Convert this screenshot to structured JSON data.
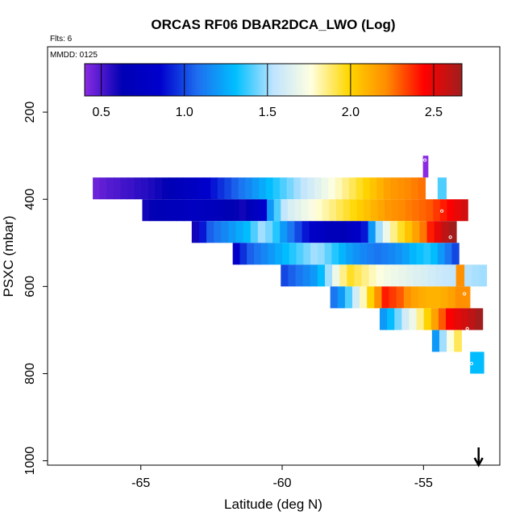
{
  "chart_data": {
    "type": "heatmap",
    "title": "ORCAS RF06 DBAR2DCA_LWO (Log)",
    "flights_label": "Flts: 6",
    "date_label": "MMDD: 0125",
    "xlabel": "Latitude (deg N)",
    "ylabel": "PSXC (mbar)",
    "xlim": [
      -68.3,
      -52.3
    ],
    "ylim": [
      1010,
      50
    ],
    "y_reversed": true,
    "x_ticks": [
      -65,
      -60,
      -55
    ],
    "x_tick_labels": [
      "-65",
      "-60",
      "-55"
    ],
    "y_ticks": [
      200,
      400,
      600,
      800,
      1000
    ],
    "y_tick_labels": [
      "200",
      "400",
      "600",
      "800",
      "1000"
    ],
    "colorbar": {
      "range": [
        0.4,
        2.67
      ],
      "ticks": [
        0.5,
        1.0,
        1.5,
        2.0,
        2.5
      ],
      "tick_labels": [
        "0.5",
        "1.0",
        "1.5",
        "2.0",
        "2.5"
      ],
      "colors": [
        "#8a2be2",
        "#0000b4",
        "#0000cd",
        "#1e6ff0",
        "#00bfff",
        "#bfe4ff",
        "#ffffe0",
        "#ffd700",
        "#ff8c00",
        "#ff0000",
        "#a01e1e"
      ]
    },
    "band_height_mbar": 50,
    "bands": [
      {
        "p": 325,
        "x0": -55.02,
        "dx": 0.175,
        "values": [
          0.4
        ]
      },
      {
        "p": 375,
        "x0": -66.7,
        "dx": 0.245,
        "values": [
          0.45,
          0.47,
          0.49,
          0.5,
          0.52,
          0.53,
          0.55,
          0.56,
          0.58,
          0.6,
          0.62,
          0.65,
          0.68,
          0.72,
          0.76,
          0.8,
          0.85,
          0.9,
          0.95,
          1.0,
          1.05,
          1.1,
          1.15,
          1.2,
          1.25,
          1.3,
          1.35,
          1.4,
          1.45,
          1.5,
          1.55,
          1.6,
          1.65,
          1.7,
          1.75,
          1.8,
          1.85,
          1.9,
          1.95,
          2.0,
          2.05,
          2.1,
          2.15,
          2.18,
          2.2,
          2.22,
          2.24,
          2.26
        ]
      },
      {
        "p": 375,
        "x0": -54.5,
        "dx": 0.3,
        "values": [
          1.4
        ]
      },
      {
        "p": 425,
        "x0": -64.95,
        "dx": 0.245,
        "values": [
          0.6,
          0.62,
          0.64,
          0.66,
          0.68,
          0.7,
          0.72,
          0.74,
          0.72,
          0.7,
          0.68,
          0.66,
          0.64,
          0.62,
          0.6,
          0.65,
          0.75,
          0.85,
          1.2,
          1.4,
          1.55,
          1.62,
          1.66,
          1.7,
          1.74,
          1.78,
          1.82,
          1.86,
          1.9,
          1.94,
          1.98,
          2.02,
          2.06,
          2.1,
          2.14,
          2.18,
          2.2,
          2.22,
          2.24,
          2.26,
          2.28,
          2.3,
          2.35,
          2.4,
          2.45,
          2.5,
          2.55
        ]
      },
      {
        "p": 475,
        "x0": -63.2,
        "dx": 0.26,
        "values": [
          0.6,
          0.9,
          1.05,
          1.1,
          1.15,
          1.2,
          1.25,
          1.3,
          1.4,
          1.5,
          1.45,
          1.35,
          1.2,
          1.1,
          1.0,
          0.9,
          0.8,
          0.75,
          0.7,
          0.68,
          0.65,
          0.72,
          0.8,
          0.9,
          1.2,
          1.5,
          1.7,
          1.85,
          1.95,
          2.05,
          2.15,
          2.25,
          2.4,
          2.5,
          2.6,
          2.66
        ]
      },
      {
        "p": 525,
        "x0": -61.75,
        "dx": 0.25,
        "values": [
          0.8,
          0.95,
          1.05,
          1.1,
          1.15,
          1.2,
          1.25,
          1.3,
          1.35,
          1.4,
          1.45,
          1.5,
          1.48,
          1.42,
          1.35,
          1.28,
          1.22,
          1.18,
          1.15,
          1.12,
          1.1,
          1.12,
          1.15,
          1.18,
          1.22,
          1.28,
          1.32,
          1.35,
          1.3,
          1.2,
          1.1,
          1.0
        ]
      },
      {
        "p": 575,
        "x0": -60.05,
        "dx": 0.26,
        "values": [
          1.0,
          1.05,
          1.1,
          1.15,
          1.2,
          1.3,
          1.5,
          1.7,
          1.85,
          1.95,
          1.9,
          1.85,
          1.8,
          1.75,
          1.72,
          1.7,
          1.68,
          1.66,
          1.64,
          1.62,
          1.6,
          1.58,
          1.56,
          1.55,
          1.53,
          1.52,
          1.51,
          1.5
        ]
      },
      {
        "p": 575,
        "x0": -53.85,
        "dx": 0.28,
        "values": [
          2.2
        ]
      },
      {
        "p": 625,
        "x0": -58.3,
        "dx": 0.26,
        "values": [
          1.1,
          1.2,
          1.4,
          1.6,
          1.8,
          2.0,
          2.2,
          2.4,
          2.35,
          2.3,
          2.2,
          2.15,
          2.12,
          2.1,
          2.1,
          2.12,
          2.15,
          2.2,
          2.2
        ]
      },
      {
        "p": 675,
        "x0": -56.55,
        "dx": 0.26,
        "values": [
          1.2,
          1.3,
          1.45,
          1.6,
          1.7,
          1.85,
          2.0,
          2.15,
          2.3,
          2.45,
          2.5,
          2.55,
          2.6,
          2.66
        ]
      },
      {
        "p": 725,
        "x0": -54.7,
        "dx": 0.26,
        "values": [
          1.2,
          1.5,
          1.75,
          1.9
        ]
      },
      {
        "p": 775,
        "x0": -53.35,
        "dx": 0.24,
        "values": [
          1.3,
          1.3
        ]
      }
    ],
    "markers": [
      {
        "lat": -54.95,
        "p": 310
      },
      {
        "lat": -66.4,
        "p": 405
      },
      {
        "lat": -54.65,
        "p": 366
      },
      {
        "lat": -54.35,
        "p": 427
      },
      {
        "lat": -53.75,
        "p": 457
      },
      {
        "lat": -54.05,
        "p": 487
      },
      {
        "lat": -53.55,
        "p": 617
      },
      {
        "lat": -53.45,
        "p": 697
      },
      {
        "lat": -53.3,
        "p": 777
      }
    ],
    "arrow_lat": -53.05
  }
}
